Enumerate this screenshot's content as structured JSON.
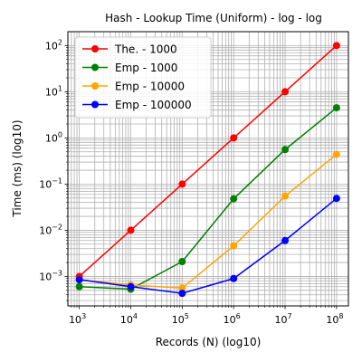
{
  "chart_data": {
    "type": "line",
    "title": "Hash - Lookup Time (Uniform) - log - log",
    "xlabel": "Records (N) (log10)",
    "ylabel": "Time (ms) (log10)",
    "x_scale": "log",
    "y_scale": "log",
    "xlim": [
      600,
      170000000
    ],
    "ylim": [
      0.00023,
      200
    ],
    "x": [
      1000,
      10000,
      100000,
      1000000,
      10000000,
      100000000
    ],
    "x_ticks": [
      {
        "value": 1000,
        "base": "10",
        "exp": "3"
      },
      {
        "value": 10000,
        "base": "10",
        "exp": "4"
      },
      {
        "value": 100000,
        "base": "10",
        "exp": "5"
      },
      {
        "value": 1000000,
        "base": "10",
        "exp": "6"
      },
      {
        "value": 10000000,
        "base": "10",
        "exp": "7"
      },
      {
        "value": 100000000,
        "base": "10",
        "exp": "8"
      }
    ],
    "y_ticks": [
      {
        "value": 0.001,
        "base": "10",
        "exp": "−3"
      },
      {
        "value": 0.01,
        "base": "10",
        "exp": "−2"
      },
      {
        "value": 0.1,
        "base": "10",
        "exp": "−1"
      },
      {
        "value": 1,
        "base": "10",
        "exp": "0"
      },
      {
        "value": 10,
        "base": "10",
        "exp": "1"
      },
      {
        "value": 100,
        "base": "10",
        "exp": "2"
      }
    ],
    "grid": true,
    "minor_grid": true,
    "legend_position": "top-left",
    "series": [
      {
        "name": "The. - 1000",
        "color": "#ff0000",
        "values": [
          0.001,
          0.01,
          0.1,
          1,
          10,
          100
        ]
      },
      {
        "name": "Emp - 1000",
        "color": "#008000",
        "values": [
          0.0006,
          0.00053,
          0.0021,
          0.048,
          0.56,
          4.5
        ]
      },
      {
        "name": "Emp - 10000",
        "color": "#ffa500",
        "values": [
          0.00085,
          0.00065,
          0.00056,
          0.0046,
          0.055,
          0.44
        ]
      },
      {
        "name": "Emp - 100000",
        "color": "#0000ff",
        "values": [
          0.00085,
          0.0006,
          0.00043,
          0.0009,
          0.006,
          0.049
        ]
      }
    ]
  }
}
